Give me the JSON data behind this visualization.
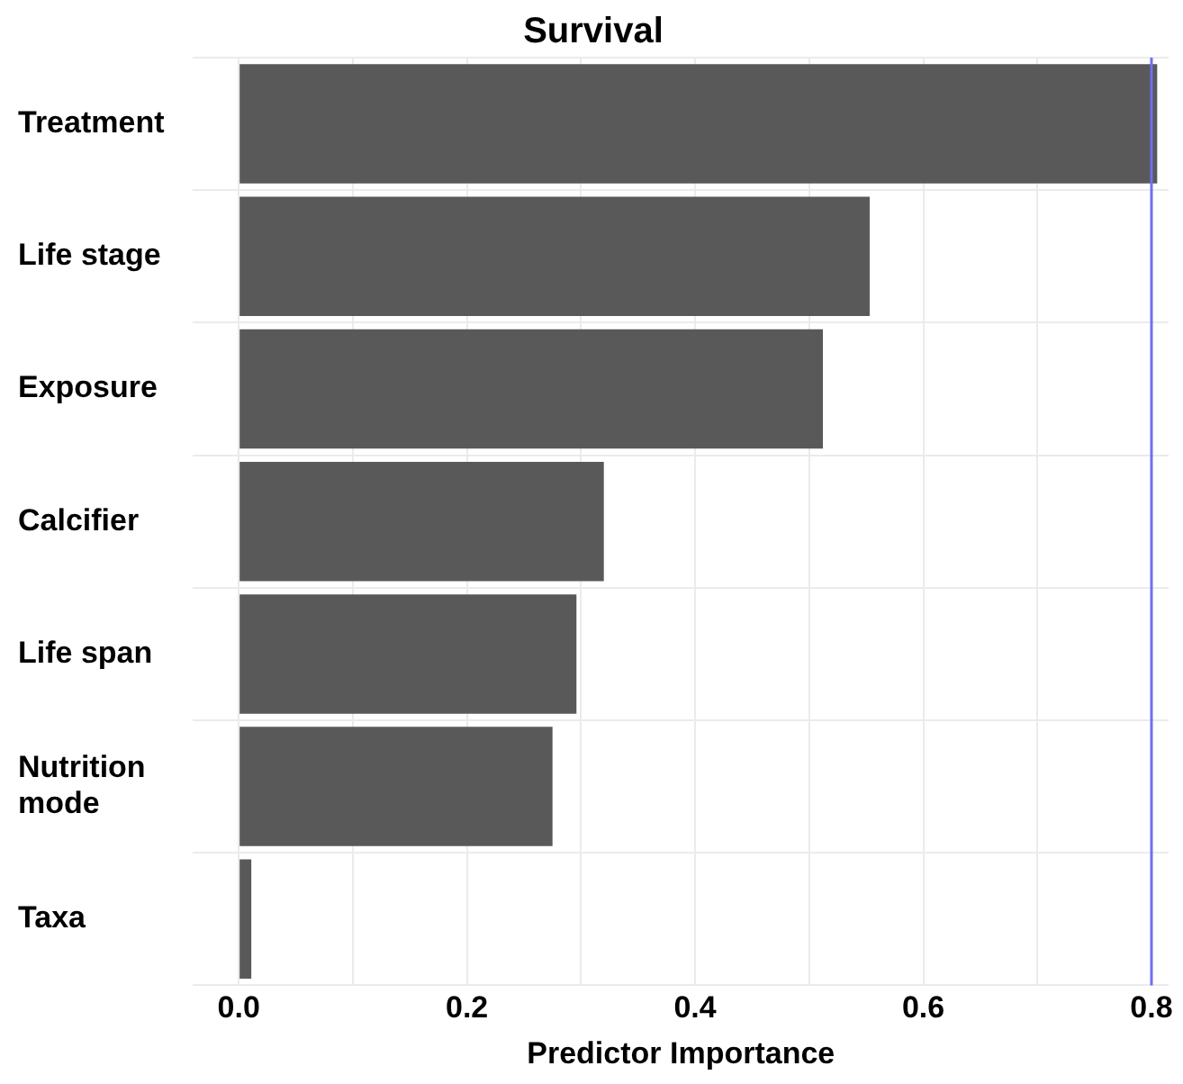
{
  "chart_data": {
    "type": "bar",
    "orientation": "horizontal",
    "title": "Survival",
    "xlabel": "Predictor Importance",
    "categories": [
      "Treatment",
      "Life stage",
      "Exposure",
      "Calcifier",
      "Life span",
      "Nutrition mode",
      "Taxa"
    ],
    "values": [
      0.805,
      0.553,
      0.512,
      0.32,
      0.296,
      0.275,
      0.011
    ],
    "color": "#595959",
    "xlim": [
      -0.04,
      0.815
    ],
    "xticks": [
      {
        "value": 0,
        "label": "0.0"
      },
      {
        "value": 0.1,
        "label": null
      },
      0.2,
      {
        "value": 0.3,
        "label": null
      },
      0.4,
      {
        "value": 0.5,
        "label": null
      },
      0.6,
      {
        "value": 0.7,
        "label": null
      },
      0.8
    ],
    "ref_lines": [
      {
        "axis": "x",
        "value": 0.8,
        "color": "#6f6ff0"
      }
    ],
    "grid": true,
    "legend": false
  }
}
